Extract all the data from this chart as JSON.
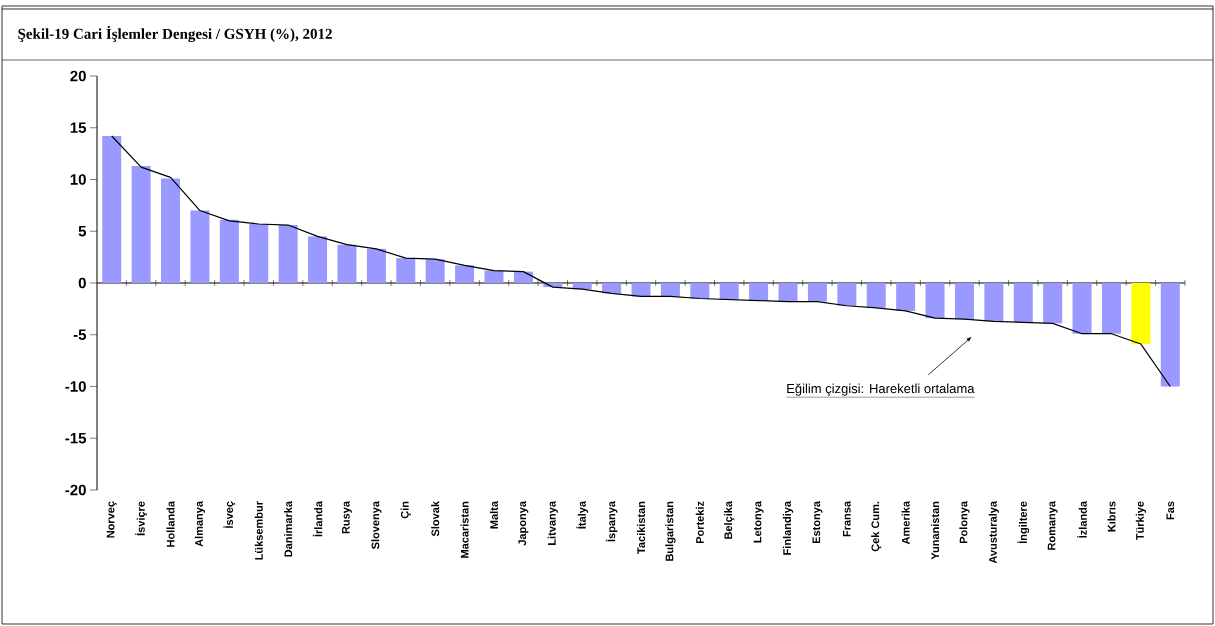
{
  "chart_data": {
    "type": "bar",
    "title": "Şekil-19 Cari İşlemler Dengesi / GSYH (%), 2012",
    "categories": [
      "Norveç",
      "İsviçre",
      "Hollanda",
      "Almanya",
      "İsveç",
      "Lüksembur",
      "Danimarka",
      "İrlanda",
      "Rusya",
      "Slovenya",
      "Çin",
      "Slovak",
      "Macaristan",
      "Malta",
      "Japonya",
      "Litvanya",
      "İtalya",
      "İspanya",
      "Tacikistan",
      "Bulgaristan",
      "Portekiz",
      "Belçika",
      "Letonya",
      "Finlandiya",
      "Estonya",
      "Fransa",
      "Çek Cum.",
      "Amerika",
      "Yunanistan",
      "Polonya",
      "Avusturalya",
      "İngiltere",
      "Romanya",
      "İzlanda",
      "Kıbrıs",
      "Türkiye",
      "Fas"
    ],
    "series": [
      {
        "type": "bar",
        "colors": [
          "#9999ff",
          "#9999ff",
          "#9999ff",
          "#9999ff",
          "#9999ff",
          "#9999ff",
          "#9999ff",
          "#9999ff",
          "#9999ff",
          "#9999ff",
          "#9999ff",
          "#9999ff",
          "#9999ff",
          "#9999ff",
          "#9999ff",
          "#9999ff",
          "#9999ff",
          "#9999ff",
          "#9999ff",
          "#9999ff",
          "#9999ff",
          "#9999ff",
          "#9999ff",
          "#9999ff",
          "#9999ff",
          "#9999ff",
          "#9999ff",
          "#9999ff",
          "#9999ff",
          "#9999ff",
          "#9999ff",
          "#9999ff",
          "#9999ff",
          "#9999ff",
          "#9999ff",
          "#ffff00",
          "#9999ff"
        ],
        "values": [
          14.2,
          11.3,
          10.1,
          7.0,
          6.1,
          5.7,
          5.6,
          4.5,
          3.7,
          3.3,
          2.4,
          2.3,
          1.7,
          1.2,
          1.1,
          -0.4,
          -0.6,
          -1.0,
          -1.3,
          -1.3,
          -1.5,
          -1.6,
          -1.7,
          -1.8,
          -1.8,
          -2.2,
          -2.4,
          -2.7,
          -3.4,
          -3.5,
          -3.7,
          -3.8,
          -3.9,
          -4.9,
          -4.9,
          -5.9,
          -10.0
        ]
      },
      {
        "type": "line",
        "color": "#000000",
        "values": [
          14.2,
          11.2,
          10.2,
          7.0,
          6.0,
          5.7,
          5.6,
          4.5,
          3.7,
          3.3,
          2.4,
          2.3,
          1.7,
          1.2,
          1.1,
          -0.4,
          -0.6,
          -1.0,
          -1.3,
          -1.3,
          -1.5,
          -1.6,
          -1.7,
          -1.8,
          -1.8,
          -2.2,
          -2.4,
          -2.7,
          -3.4,
          -3.5,
          -3.7,
          -3.8,
          -3.9,
          -4.9,
          -4.9,
          -5.9,
          -10.0
        ]
      }
    ],
    "ylim": [
      -20,
      20
    ],
    "yticks": [
      -20,
      -15,
      -10,
      -5,
      0,
      5,
      10,
      15,
      20
    ],
    "marker": "none",
    "line_style": "solid",
    "annotations": [
      "Eğilim çizgisi: Hareketli ortalama"
    ]
  }
}
